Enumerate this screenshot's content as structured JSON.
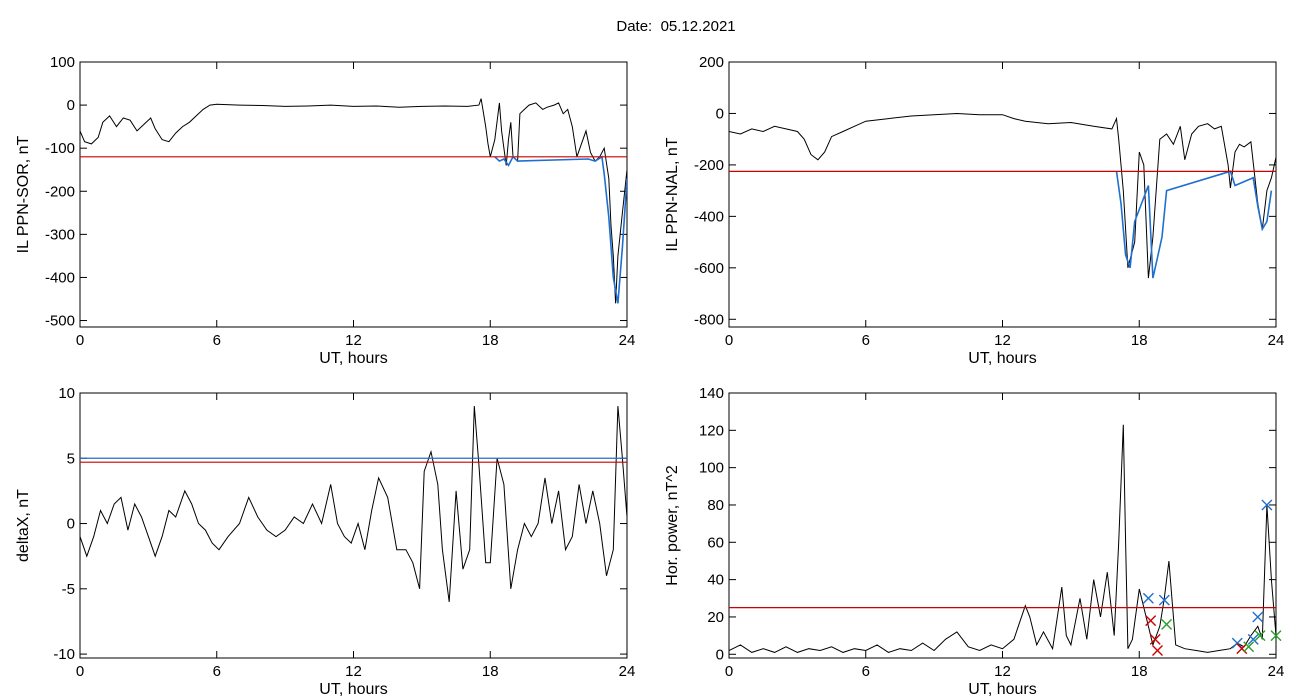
{
  "header": {
    "date_label": "Date:",
    "date_value": "05.12.2021"
  },
  "chart_data": [
    {
      "id": "ppn-sor",
      "type": "line",
      "title": "",
      "xlabel": "UT, hours",
      "ylabel": "IL PPN-SOR, nT",
      "xlim": [
        0,
        24
      ],
      "ylim": [
        -515,
        100
      ],
      "xticks": [
        0,
        6,
        12,
        18,
        24
      ],
      "yticks": [
        100,
        0,
        -100,
        -200,
        -300,
        -400,
        -500
      ],
      "grid": false,
      "colors": {
        "line": "#000000",
        "threshold": "#cc0000",
        "highlight": "#1f6fd0"
      },
      "threshold": -120,
      "series": [
        {
          "x": [
            0,
            0.2,
            0.5,
            0.8,
            1.0,
            1.3,
            1.6,
            1.9,
            2.2,
            2.5,
            2.8,
            3.1,
            3.3,
            3.6,
            3.9,
            4.2,
            4.5,
            4.8,
            5.1,
            5.4,
            5.7,
            6.0,
            7.0,
            8.0,
            9.0,
            10.0,
            11.0,
            12.0,
            13.0,
            14.0,
            15.0,
            16.0,
            17.0,
            17.5,
            17.6,
            17.8,
            17.9,
            18.0,
            18.2,
            18.4,
            18.5,
            18.6,
            18.7,
            18.8,
            18.9,
            19.0,
            19.2,
            19.3,
            19.5,
            19.7,
            20.0,
            20.3,
            20.5,
            20.8,
            21.0,
            21.2,
            21.4,
            21.6,
            21.8,
            22.0,
            22.2,
            22.4,
            22.6,
            22.8,
            23.0,
            23.2,
            23.3,
            23.4,
            23.5,
            23.6,
            23.8,
            24.0
          ],
          "y": [
            -60,
            -85,
            -90,
            -75,
            -40,
            -25,
            -50,
            -30,
            -35,
            -60,
            -45,
            -30,
            -55,
            -80,
            -85,
            -65,
            -50,
            -40,
            -25,
            -10,
            0,
            2,
            0,
            -1,
            -3,
            -2,
            0,
            -3,
            -2,
            -5,
            -3,
            -2,
            -3,
            0,
            15,
            -50,
            -90,
            -120,
            -80,
            5,
            -60,
            -100,
            -140,
            -80,
            -40,
            -120,
            -130,
            -20,
            -10,
            0,
            5,
            -10,
            -5,
            0,
            5,
            -20,
            -10,
            -50,
            -120,
            -90,
            -60,
            -110,
            -130,
            -120,
            -100,
            -170,
            -280,
            -350,
            -460,
            -350,
            -250,
            -150
          ]
        },
        {
          "x": [
            18.2,
            18.4,
            18.6,
            18.8,
            19.0,
            19.2,
            22.3,
            22.6,
            22.9,
            23.0,
            23.2,
            23.4,
            23.6,
            23.8,
            24.0
          ],
          "y": [
            -120,
            -130,
            -125,
            -140,
            -120,
            -130,
            -125,
            -130,
            -120,
            -160,
            -260,
            -400,
            -460,
            -330,
            -170
          ]
        }
      ]
    },
    {
      "id": "ppn-nal",
      "type": "line",
      "title": "",
      "xlabel": "UT, hours",
      "ylabel": "IL PPN-NAL, nT",
      "xlim": [
        0,
        24
      ],
      "ylim": [
        -830,
        200
      ],
      "xticks": [
        0,
        6,
        12,
        18,
        24
      ],
      "yticks": [
        200,
        0,
        -200,
        -400,
        -600,
        -800
      ],
      "grid": false,
      "colors": {
        "line": "#000000",
        "threshold": "#cc0000",
        "highlight": "#1f6fd0"
      },
      "threshold": -225,
      "series": [
        {
          "x": [
            0,
            0.5,
            1.0,
            1.5,
            2.0,
            2.5,
            3.0,
            3.3,
            3.6,
            3.9,
            4.2,
            4.5,
            5.0,
            5.5,
            6.0,
            7.0,
            8.0,
            9.0,
            10.0,
            11.0,
            12.0,
            12.5,
            13.0,
            14.0,
            15.0,
            16.0,
            16.8,
            17.0,
            17.1,
            17.3,
            17.5,
            17.8,
            18.0,
            18.2,
            18.4,
            18.6,
            18.9,
            19.2,
            19.5,
            19.8,
            20.0,
            20.3,
            20.6,
            21.0,
            21.3,
            21.6,
            21.9,
            22.0,
            22.2,
            22.4,
            22.6,
            22.9,
            23.2,
            23.4,
            23.6,
            23.8,
            24.0
          ],
          "y": [
            -70,
            -80,
            -60,
            -70,
            -50,
            -60,
            -70,
            -100,
            -160,
            -180,
            -150,
            -90,
            -70,
            -50,
            -30,
            -20,
            -10,
            -5,
            0,
            -5,
            -5,
            -20,
            -30,
            -40,
            -35,
            -50,
            -60,
            -20,
            -100,
            -300,
            -600,
            -500,
            -150,
            -200,
            -640,
            -480,
            -100,
            -80,
            -120,
            -50,
            -180,
            -80,
            -50,
            -40,
            -60,
            -50,
            -200,
            -290,
            -150,
            -120,
            -130,
            -110,
            -350,
            -450,
            -300,
            -250,
            -170
          ]
        },
        {
          "x": [
            17.0,
            17.2,
            17.4,
            17.6,
            17.8,
            18.4,
            18.6,
            18.8,
            19.0,
            19.2,
            22.0,
            22.2,
            23.0,
            23.2,
            23.4,
            23.6,
            23.8
          ],
          "y": [
            -225,
            -350,
            -550,
            -600,
            -420,
            -280,
            -640,
            -560,
            -480,
            -300,
            -225,
            -280,
            -250,
            -360,
            -450,
            -420,
            -300
          ]
        }
      ]
    },
    {
      "id": "deltax",
      "type": "line",
      "title": "",
      "xlabel": "UT, hours",
      "ylabel": "deltaX, nT",
      "xlim": [
        0,
        24
      ],
      "ylim": [
        -10.3,
        10
      ],
      "xticks": [
        0,
        6,
        12,
        18,
        24
      ],
      "yticks": [
        10,
        5,
        0,
        -5,
        -10
      ],
      "grid": false,
      "colors": {
        "line": "#000000",
        "threshold": "#cc0000",
        "threshold2": "#1f6fd0"
      },
      "threshold": 4.7,
      "threshold2": 5.0,
      "series": [
        {
          "x": [
            0,
            0.3,
            0.6,
            0.9,
            1.2,
            1.5,
            1.8,
            2.1,
            2.4,
            2.7,
            3.0,
            3.3,
            3.6,
            3.9,
            4.2,
            4.6,
            4.9,
            5.2,
            5.5,
            5.8,
            6.1,
            6.5,
            7.0,
            7.4,
            7.8,
            8.2,
            8.6,
            9.0,
            9.4,
            9.8,
            10.2,
            10.6,
            11.0,
            11.3,
            11.6,
            11.9,
            12.2,
            12.5,
            12.8,
            13.1,
            13.5,
            13.9,
            14.3,
            14.6,
            14.9,
            15.1,
            15.4,
            15.7,
            15.9,
            16.2,
            16.5,
            16.8,
            17.1,
            17.3,
            17.5,
            17.8,
            18.0,
            18.3,
            18.6,
            18.9,
            19.2,
            19.5,
            19.8,
            20.1,
            20.4,
            20.7,
            21.0,
            21.3,
            21.6,
            21.9,
            22.2,
            22.5,
            22.8,
            23.1,
            23.4,
            23.6,
            23.8,
            24.0
          ],
          "y": [
            -1,
            -2.5,
            -1,
            1,
            0,
            1.5,
            2,
            -0.5,
            1.5,
            0.5,
            -1,
            -2.5,
            -1,
            1,
            0.5,
            2.5,
            1.5,
            0,
            -0.5,
            -1.5,
            -2,
            -1,
            0,
            2,
            0.5,
            -0.5,
            -1,
            -0.5,
            0.5,
            0,
            1.5,
            0,
            3,
            0,
            -1,
            -1.5,
            0,
            -2,
            1,
            3.5,
            2,
            -2,
            -2,
            -3,
            -5,
            4,
            5.5,
            3,
            -2,
            -6,
            2.5,
            -3.5,
            -2,
            9,
            4.5,
            -3,
            -3,
            5,
            3,
            -5,
            -2,
            0,
            -1,
            0,
            3.5,
            0,
            2.5,
            -2,
            -1,
            3,
            0,
            2.5,
            0,
            -4,
            -2,
            9,
            5,
            0.5
          ]
        }
      ]
    },
    {
      "id": "hor-power",
      "type": "line",
      "title": "",
      "xlabel": "UT, hours",
      "ylabel": "Hor. power, nT^2",
      "xlim": [
        0,
        24
      ],
      "ylim": [
        -2,
        140
      ],
      "xticks": [
        0,
        6,
        12,
        18,
        24
      ],
      "yticks": [
        140,
        120,
        100,
        80,
        60,
        40,
        20,
        0
      ],
      "grid": false,
      "colors": {
        "line": "#000000",
        "threshold": "#cc0000"
      },
      "threshold": 25,
      "series": [
        {
          "x": [
            0,
            0.5,
            1.0,
            1.5,
            2.0,
            2.5,
            3.0,
            3.5,
            4.0,
            4.5,
            5.0,
            5.5,
            6.0,
            6.5,
            7.0,
            7.5,
            8.0,
            8.5,
            9.0,
            9.5,
            10.0,
            10.5,
            11.0,
            11.5,
            12.0,
            12.5,
            13.0,
            13.2,
            13.5,
            13.8,
            14.2,
            14.6,
            14.8,
            15.0,
            15.4,
            15.7,
            16.0,
            16.3,
            16.6,
            16.9,
            17.1,
            17.3,
            17.4,
            17.5,
            17.7,
            18.0,
            18.3,
            18.6,
            18.9,
            19.1,
            19.3,
            19.6,
            20.0,
            20.5,
            21.0,
            21.5,
            22.0,
            22.3,
            22.6,
            22.9,
            23.2,
            23.4,
            23.6,
            23.8,
            24.0
          ],
          "y": [
            2,
            5,
            1,
            3,
            1,
            4,
            1,
            3,
            2,
            4,
            1,
            3,
            2,
            5,
            1,
            3,
            2,
            6,
            2,
            8,
            12,
            4,
            2,
            5,
            3,
            8,
            26,
            20,
            5,
            12,
            3,
            36,
            10,
            5,
            30,
            8,
            40,
            20,
            44,
            10,
            60,
            123,
            60,
            3,
            8,
            35,
            20,
            5,
            15,
            30,
            50,
            5,
            3,
            2,
            1,
            2,
            3,
            6,
            4,
            10,
            15,
            8,
            80,
            40,
            10
          ]
        }
      ],
      "markers": [
        {
          "x": 18.4,
          "y": 30,
          "color": "#1f6fd0"
        },
        {
          "x": 18.5,
          "y": 18,
          "color": "#cc0000"
        },
        {
          "x": 18.7,
          "y": 8,
          "color": "#cc0000"
        },
        {
          "x": 18.8,
          "y": 2,
          "color": "#cc0000"
        },
        {
          "x": 19.1,
          "y": 29,
          "color": "#1f6fd0"
        },
        {
          "x": 19.2,
          "y": 16,
          "color": "#2aa02a"
        },
        {
          "x": 22.3,
          "y": 6,
          "color": "#1f6fd0"
        },
        {
          "x": 22.5,
          "y": 3,
          "color": "#cc0000"
        },
        {
          "x": 22.8,
          "y": 4,
          "color": "#2aa02a"
        },
        {
          "x": 23.0,
          "y": 8,
          "color": "#1f6fd0"
        },
        {
          "x": 23.2,
          "y": 20,
          "color": "#1f6fd0"
        },
        {
          "x": 23.3,
          "y": 10,
          "color": "#2aa02a"
        },
        {
          "x": 23.6,
          "y": 80,
          "color": "#1f6fd0"
        },
        {
          "x": 24.0,
          "y": 10,
          "color": "#2aa02a"
        }
      ]
    }
  ]
}
